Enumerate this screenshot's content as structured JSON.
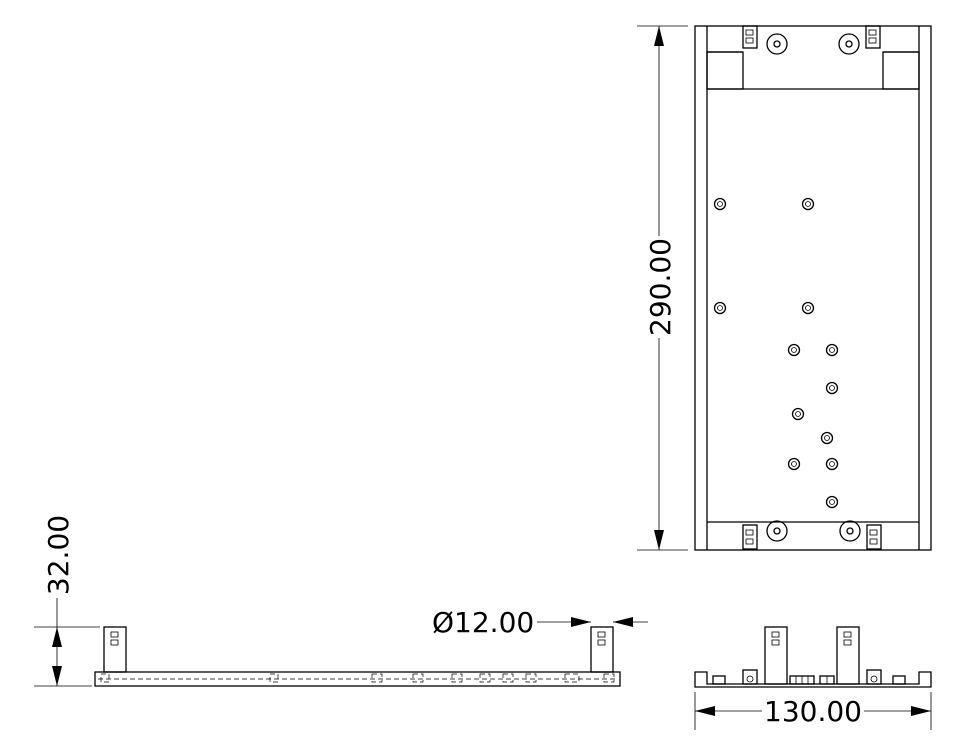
{
  "drawing": {
    "views": [
      "top-view",
      "front-view",
      "side-view"
    ],
    "dimensions": {
      "length": "290.00",
      "height": "32.00",
      "diameter": "Ø12.00",
      "width": "130.00"
    }
  }
}
